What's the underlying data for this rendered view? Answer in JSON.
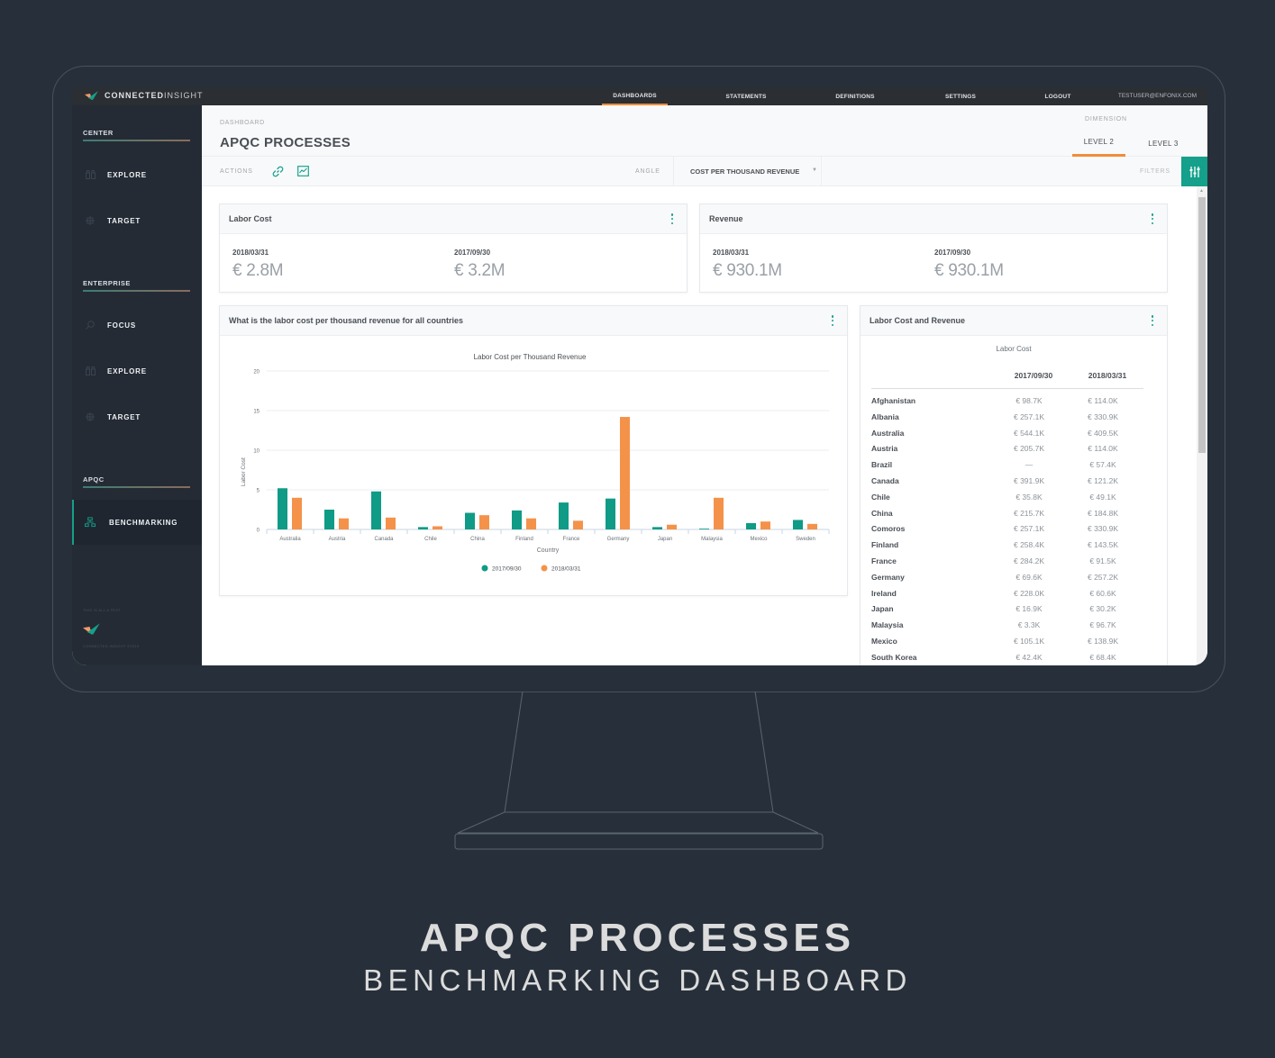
{
  "app": {
    "brand_bold": "CONNECTED",
    "brand_light": "INSIGHT",
    "nav": [
      {
        "label": "DASHBOARDS",
        "active": true
      },
      {
        "label": "STATEMENTS",
        "active": false
      },
      {
        "label": "DEFINITIONS",
        "active": false
      },
      {
        "label": "SETTINGS",
        "active": false
      },
      {
        "label": "LOGOUT",
        "active": false
      }
    ],
    "user_email": "TESTUSER@ENFONIX.COM"
  },
  "sidebar": {
    "sections": [
      {
        "label": "CENTER",
        "items": [
          {
            "label": "EXPLORE",
            "icon": "binoculars-icon"
          },
          {
            "label": "TARGET",
            "icon": "target-icon"
          }
        ]
      },
      {
        "label": "ENTERPRISE",
        "items": [
          {
            "label": "FOCUS",
            "icon": "magnifier-icon"
          },
          {
            "label": "EXPLORE",
            "icon": "binoculars-icon"
          },
          {
            "label": "TARGET",
            "icon": "target-icon"
          }
        ]
      },
      {
        "label": "APQC",
        "items": [
          {
            "label": "BENCHMARKING",
            "icon": "hierarchy-icon",
            "active": true
          }
        ]
      }
    ],
    "footer_top": "THIS IS ALL A TEST",
    "footer_bottom": "CONNECTED INSIGHT ©2019"
  },
  "header": {
    "breadcrumb": "DASHBOARD",
    "title": "APQC PROCESSES",
    "dimension_label": "DIMENSION",
    "levels": [
      {
        "label": "LEVEL 2",
        "active": true
      },
      {
        "label": "LEVEL 3",
        "active": false
      }
    ]
  },
  "actionbar": {
    "actions_label": "ACTIONS",
    "angle_label": "ANGLE",
    "angle_value": "COST PER THOUSAND REVENUE",
    "filters_label": "FILTERS"
  },
  "kpis": [
    {
      "title": "Labor Cost",
      "items": [
        {
          "date": "2018/03/31",
          "value": "€ 2.8M"
        },
        {
          "date": "2017/09/30",
          "value": "€ 3.2M"
        }
      ]
    },
    {
      "title": "Revenue",
      "items": [
        {
          "date": "2018/03/31",
          "value": "€ 930.1M"
        },
        {
          "date": "2017/09/30",
          "value": "€ 930.1M"
        }
      ]
    }
  ],
  "chart_card": {
    "title": "What is the labor cost per thousand revenue for all countries"
  },
  "chart_data": {
    "type": "bar",
    "title": "Labor Cost per Thousand Revenue",
    "xlabel": "Country",
    "ylabel": "Labor Cost",
    "ylim": [
      0,
      20
    ],
    "yticks": [
      0,
      5,
      10,
      15,
      20
    ],
    "grid": true,
    "legend_position": "bottom",
    "categories": [
      "Australia",
      "Austria",
      "Canada",
      "Chile",
      "China",
      "Finland",
      "France",
      "Germany",
      "Japan",
      "Malaysia",
      "Mexico",
      "Sweden"
    ],
    "series": [
      {
        "name": "2017/09/30",
        "color": "#0f9b86",
        "values": [
          5.2,
          2.5,
          4.8,
          0.3,
          2.1,
          2.4,
          3.4,
          3.9,
          0.3,
          0.1,
          0.8,
          1.2
        ]
      },
      {
        "name": "2018/03/31",
        "color": "#f5924a",
        "values": [
          4.0,
          1.4,
          1.5,
          0.4,
          1.8,
          1.4,
          1.1,
          14.2,
          0.6,
          4.0,
          1.0,
          0.7
        ]
      }
    ]
  },
  "table_card": {
    "title": "Labor Cost and Revenue",
    "subtitle": "Labor Cost",
    "columns": [
      "2017/09/30",
      "2018/03/31"
    ],
    "rows": [
      {
        "country": "Afghanistan",
        "v1": "€ 98.7K",
        "v2": "€ 114.0K"
      },
      {
        "country": "Albania",
        "v1": "€ 257.1K",
        "v2": "€ 330.9K"
      },
      {
        "country": "Australia",
        "v1": "€ 544.1K",
        "v2": "€ 409.5K"
      },
      {
        "country": "Austria",
        "v1": "€ 205.7K",
        "v2": "€ 114.0K"
      },
      {
        "country": "Brazil",
        "v1": "—",
        "v2": "€ 57.4K"
      },
      {
        "country": "Canada",
        "v1": "€ 391.9K",
        "v2": "€ 121.2K"
      },
      {
        "country": "Chile",
        "v1": "€ 35.8K",
        "v2": "€ 49.1K"
      },
      {
        "country": "China",
        "v1": "€ 215.7K",
        "v2": "€ 184.8K"
      },
      {
        "country": "Comoros",
        "v1": "€ 257.1K",
        "v2": "€ 330.9K"
      },
      {
        "country": "Finland",
        "v1": "€ 258.4K",
        "v2": "€ 143.5K"
      },
      {
        "country": "France",
        "v1": "€ 284.2K",
        "v2": "€ 91.5K"
      },
      {
        "country": "Germany",
        "v1": "€ 69.6K",
        "v2": "€ 257.2K"
      },
      {
        "country": "Ireland",
        "v1": "€ 228.0K",
        "v2": "€ 60.6K"
      },
      {
        "country": "Japan",
        "v1": "€ 16.9K",
        "v2": "€ 30.2K"
      },
      {
        "country": "Malaysia",
        "v1": "€ 3.3K",
        "v2": "€ 96.7K"
      },
      {
        "country": "Mexico",
        "v1": "€ 105.1K",
        "v2": "€ 138.9K"
      },
      {
        "country": "South Korea",
        "v1": "€ 42.4K",
        "v2": "€ 68.4K"
      }
    ]
  },
  "caption": {
    "title": "APQC PROCESSES",
    "subtitle": "BENCHMARKING DASHBOARD"
  },
  "colors": {
    "accent_teal": "#14a08a",
    "accent_orange": "#f08c3c",
    "background": "#27303a",
    "sidebar": "#242b35"
  }
}
